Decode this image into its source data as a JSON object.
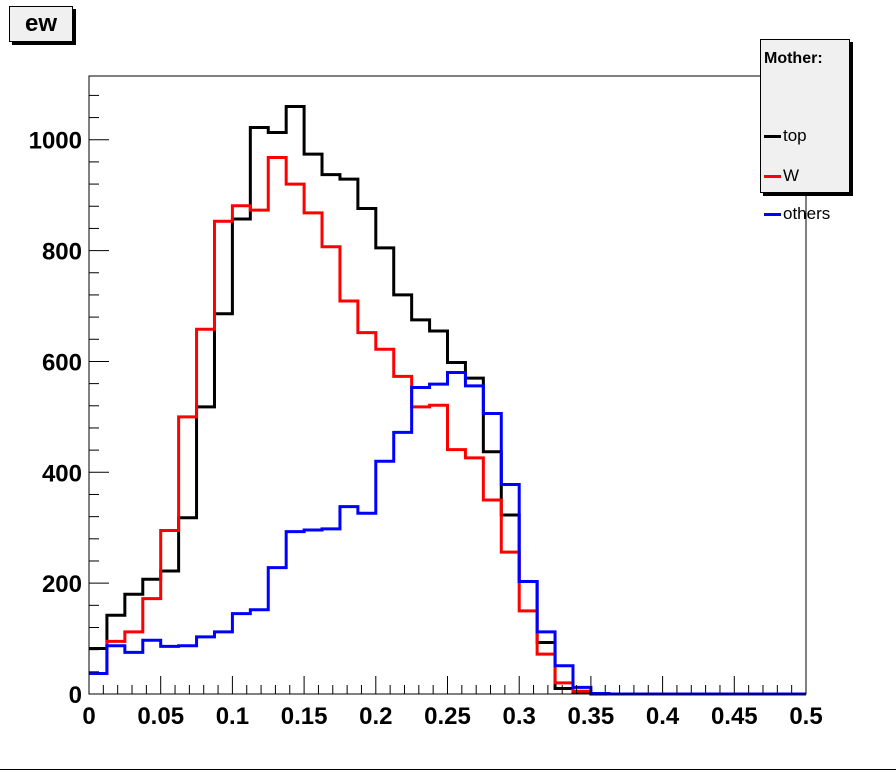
{
  "title_box": {
    "label": "ew"
  },
  "legend": {
    "header": "Mother:",
    "entries": [
      {
        "label": "top",
        "color": "#000000"
      },
      {
        "label": "W",
        "color": "#ff0000"
      },
      {
        "label": "others",
        "color": "#0000ff"
      }
    ]
  },
  "chart_data": {
    "type": "histogram",
    "title": "ew",
    "xlabel": "",
    "ylabel": "",
    "xlim": [
      0,
      0.5
    ],
    "ylim": [
      0,
      1115
    ],
    "x_ticks": [
      0,
      0.05,
      0.1,
      0.15,
      0.2,
      0.25,
      0.3,
      0.35,
      0.4,
      0.45,
      0.5
    ],
    "x_tick_labels": [
      "0",
      "0.05",
      "0.1",
      "0.15",
      "0.2",
      "0.25",
      "0.3",
      "0.35",
      "0.4",
      "0.45",
      "0.5"
    ],
    "y_ticks": [
      0,
      200,
      400,
      600,
      800,
      1000
    ],
    "y_tick_labels": [
      "0",
      "200",
      "400",
      "600",
      "800",
      "1000"
    ],
    "grid": false,
    "legend_position": "top-right",
    "bin_edges_start": 0,
    "bin_width": 0.0125,
    "series": [
      {
        "name": "top",
        "color": "#000000",
        "values": [
          82,
          142,
          180,
          207,
          222,
          318,
          518,
          686,
          857,
          1022,
          1013,
          1060,
          974,
          937,
          929,
          876,
          805,
          720,
          675,
          655,
          598,
          570,
          437,
          323,
          203,
          93,
          10,
          3,
          0,
          0,
          0,
          0,
          0,
          0,
          0,
          0,
          0,
          0,
          0,
          0
        ]
      },
      {
        "name": "W",
        "color": "#ff0000",
        "values": [
          37,
          95,
          112,
          172,
          295,
          500,
          658,
          853,
          881,
          873,
          968,
          920,
          868,
          807,
          709,
          652,
          622,
          573,
          518,
          521,
          441,
          426,
          350,
          256,
          150,
          72,
          20,
          5,
          1,
          0,
          0,
          0,
          0,
          0,
          0,
          0,
          0,
          0,
          0,
          0
        ]
      },
      {
        "name": "others",
        "color": "#0000ff",
        "values": [
          37,
          87,
          75,
          97,
          86,
          87,
          103,
          112,
          145,
          152,
          228,
          293,
          296,
          298,
          338,
          326,
          420,
          472,
          553,
          559,
          580,
          556,
          506,
          378,
          203,
          112,
          51,
          12,
          1,
          0,
          0,
          0,
          0,
          0,
          0,
          0,
          0,
          0,
          0,
          0
        ]
      }
    ]
  }
}
